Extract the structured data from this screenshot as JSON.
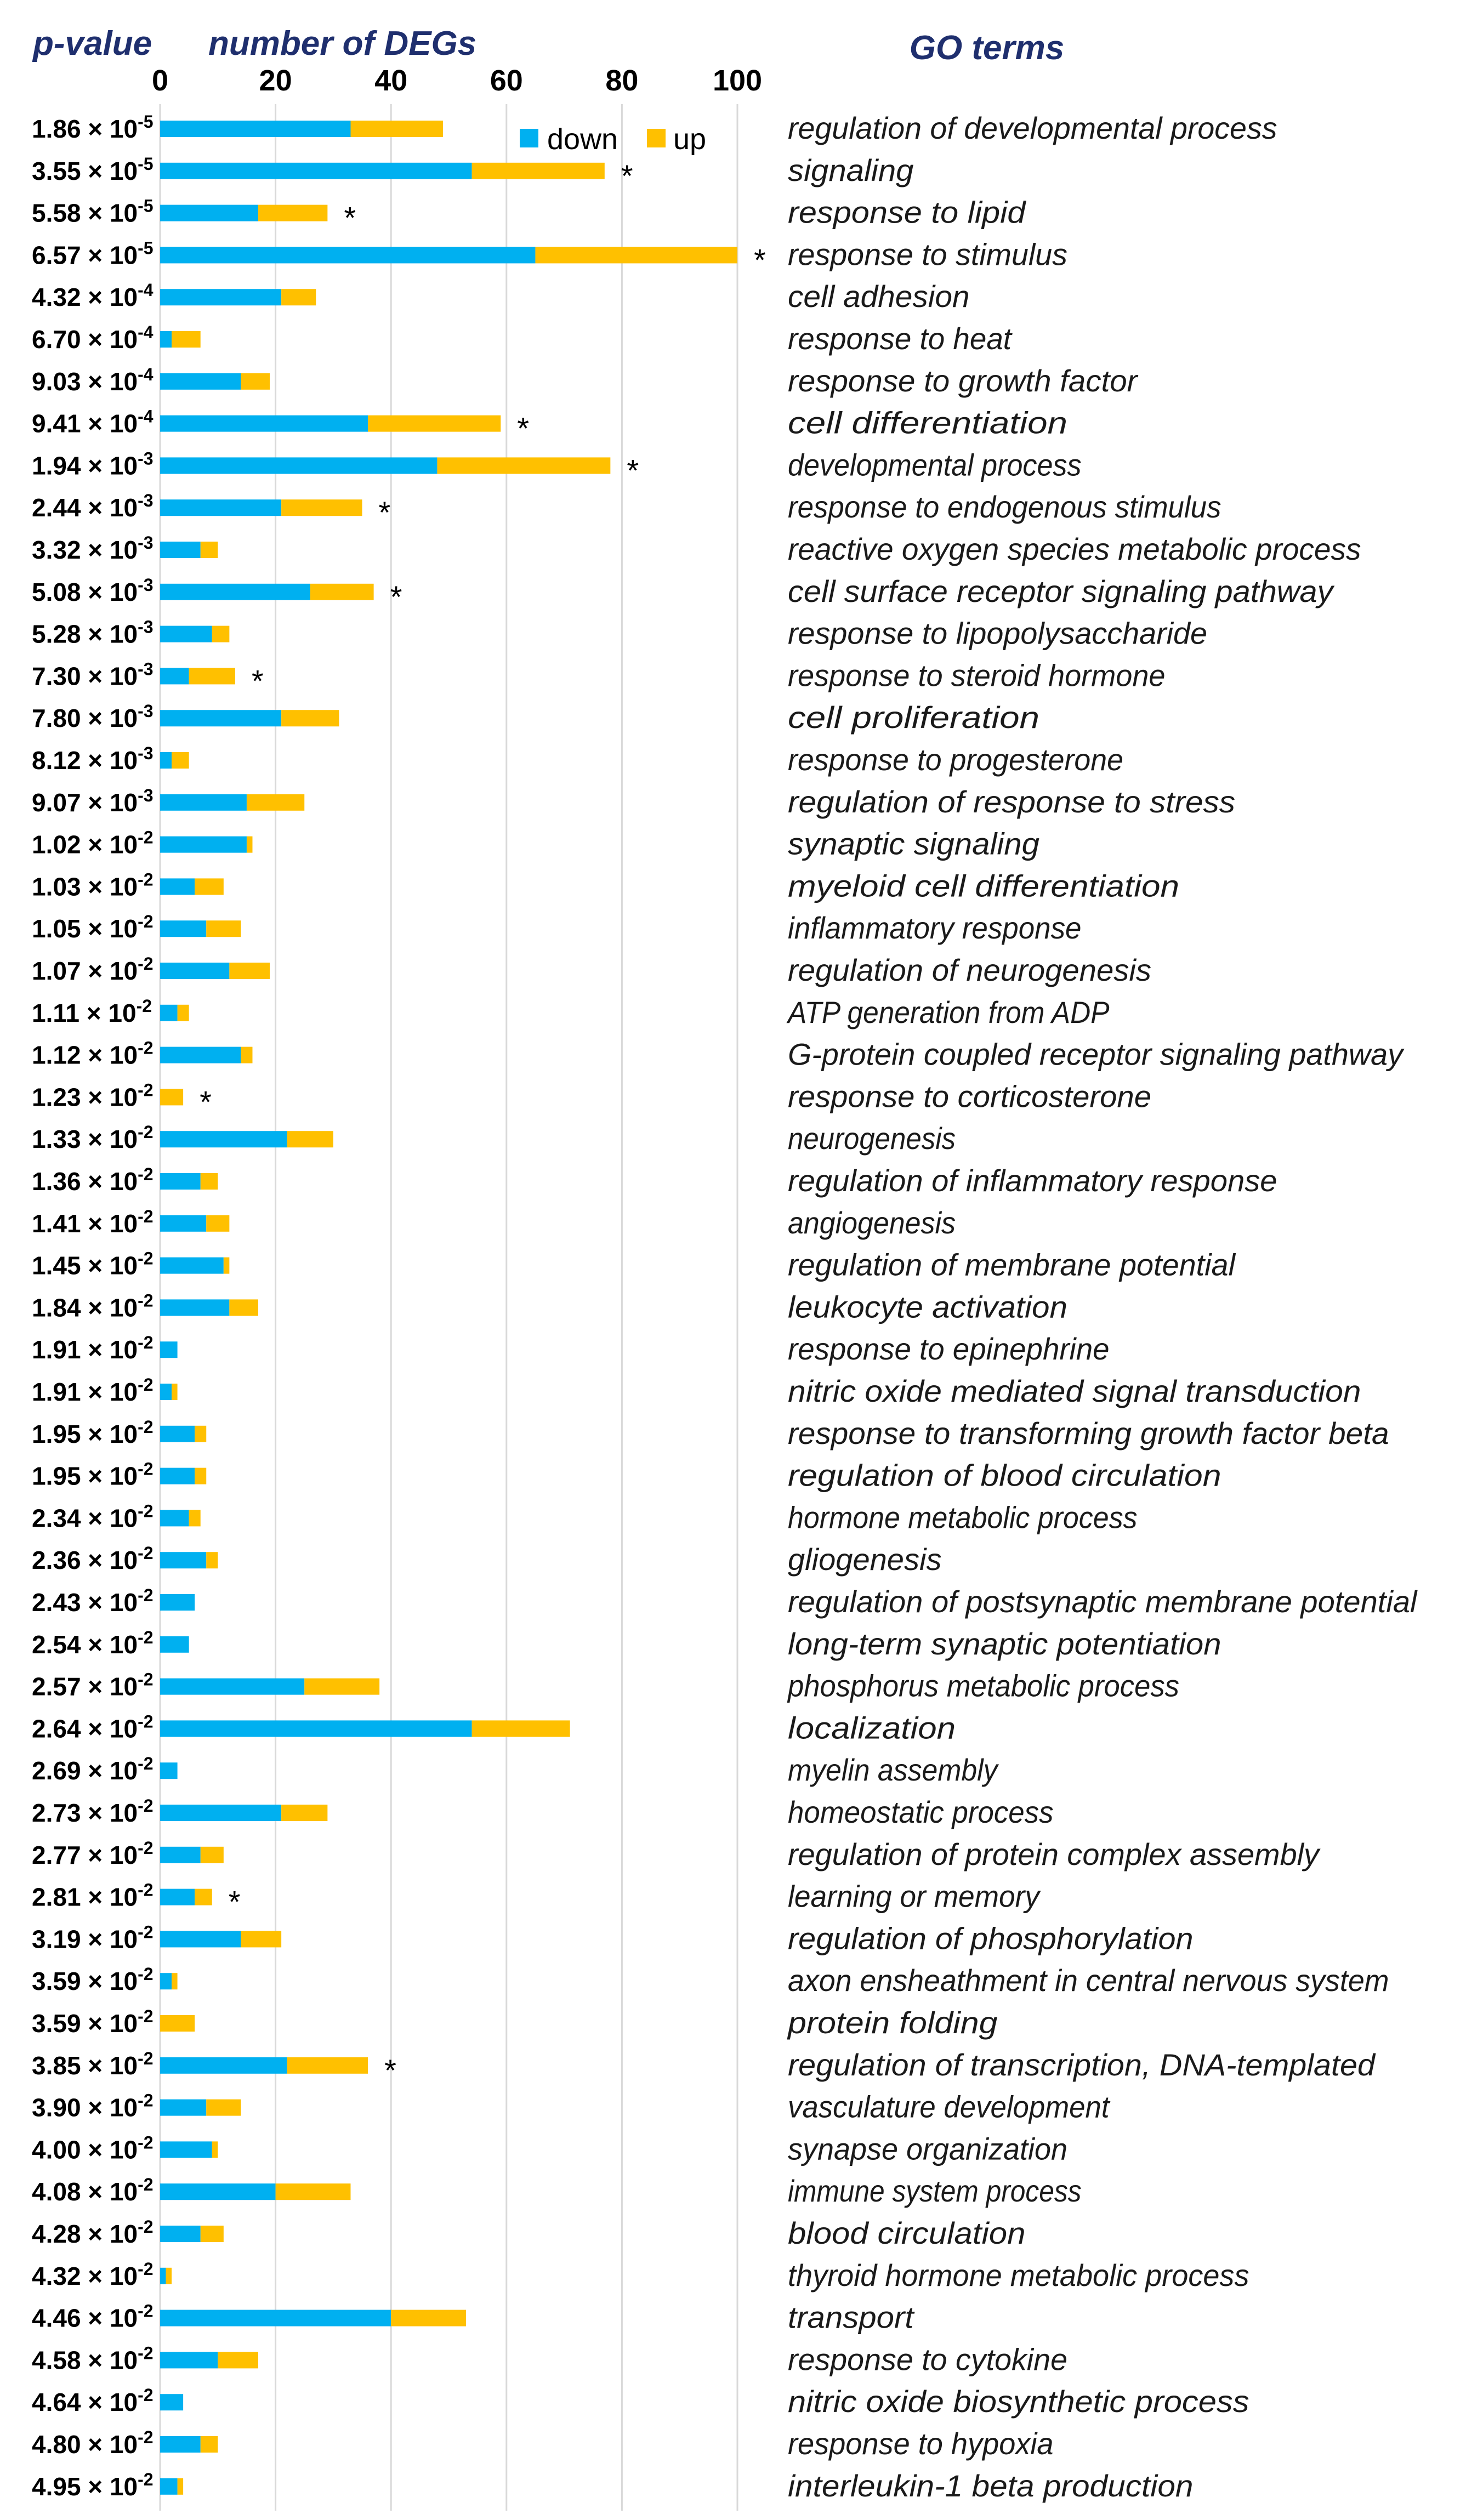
{
  "chart_data": {
    "type": "bar",
    "stacked": true,
    "orientation": "horizontal",
    "headers": {
      "pvalue": "p-value",
      "count": "number of DEGs",
      "terms": "GO terms"
    },
    "xlim": [
      0,
      100
    ],
    "xticks": [
      "0",
      "20",
      "40",
      "60",
      "80",
      "100"
    ],
    "grid": true,
    "legend_position": "top-right",
    "colors": {
      "down": "#00b0f0",
      "up": "#ffc000"
    },
    "series": [
      {
        "name": "down",
        "values": [
          33,
          54,
          17,
          65,
          21,
          2,
          14,
          36,
          48,
          21,
          7,
          26,
          9,
          5,
          21,
          2,
          15,
          15,
          6,
          8,
          12,
          3,
          14,
          0,
          22,
          7,
          8,
          11,
          12,
          3,
          2,
          6,
          6,
          5,
          8,
          6,
          5,
          25,
          54,
          3,
          21,
          7,
          6,
          14,
          2,
          0,
          22,
          8,
          9,
          20,
          7,
          1,
          40,
          10,
          4,
          7,
          3
        ]
      },
      {
        "name": "up",
        "values": [
          16,
          23,
          12,
          35,
          6,
          5,
          5,
          23,
          30,
          14,
          3,
          11,
          3,
          8,
          10,
          3,
          10,
          1,
          5,
          6,
          7,
          2,
          2,
          4,
          8,
          3,
          4,
          1,
          5,
          0,
          1,
          2,
          2,
          2,
          2,
          0,
          0,
          13,
          17,
          0,
          8,
          4,
          3,
          7,
          1,
          6,
          14,
          6,
          1,
          13,
          4,
          1,
          13,
          7,
          0,
          3,
          1
        ]
      }
    ],
    "categories": [
      {
        "p": "1.86 × 10",
        "e": "-5",
        "term": "regulation of developmental process",
        "star": ""
      },
      {
        "p": "3.55 × 10",
        "e": "-5",
        "term": "signaling",
        "star": "*"
      },
      {
        "p": "5.58 × 10",
        "e": "-5",
        "term": "response to lipid",
        "star": "*"
      },
      {
        "p": "6.57 × 10",
        "e": "-5",
        "term": "response to stimulus",
        "star": "*"
      },
      {
        "p": "4.32 × 10",
        "e": "-4",
        "term": "cell adhesion",
        "star": ""
      },
      {
        "p": "6.70 × 10",
        "e": "-4",
        "term": "response to heat",
        "star": ""
      },
      {
        "p": "9.03 × 10",
        "e": "-4",
        "term": "response to growth factor",
        "star": ""
      },
      {
        "p": "9.41 × 10",
        "e": "-4",
        "term": "cell differentiation",
        "star": "*"
      },
      {
        "p": "1.94 × 10",
        "e": "-3",
        "term": "developmental process",
        "star": "*"
      },
      {
        "p": "2.44 × 10",
        "e": "-3",
        "term": "response to endogenous stimulus",
        "star": "*"
      },
      {
        "p": "3.32 × 10",
        "e": "-3",
        "term": "reactive oxygen species metabolic process",
        "star": ""
      },
      {
        "p": "5.08 × 10",
        "e": "-3",
        "term": "cell surface receptor signaling pathway",
        "star": "*"
      },
      {
        "p": "5.28 × 10",
        "e": "-3",
        "term": "response to lipopolysaccharide",
        "star": ""
      },
      {
        "p": "7.30 × 10",
        "e": "-3",
        "term": "response to steroid hormone",
        "star": "*"
      },
      {
        "p": "7.80 × 10",
        "e": "-3",
        "term": "cell proliferation",
        "star": ""
      },
      {
        "p": "8.12 × 10",
        "e": "-3",
        "term": "response to progesterone",
        "star": ""
      },
      {
        "p": "9.07 × 10",
        "e": "-3",
        "term": "regulation of response to stress",
        "star": ""
      },
      {
        "p": "1.02 × 10",
        "e": "-2",
        "term": "synaptic signaling",
        "star": ""
      },
      {
        "p": "1.03 × 10",
        "e": "-2",
        "term": "myeloid cell differentiation",
        "star": ""
      },
      {
        "p": "1.05 × 10",
        "e": "-2",
        "term": "inflammatory response",
        "star": ""
      },
      {
        "p": "1.07 × 10",
        "e": "-2",
        "term": "regulation of neurogenesis",
        "star": ""
      },
      {
        "p": "1.11 × 10",
        "e": "-2",
        "term": "ATP generation from ADP",
        "star": ""
      },
      {
        "p": "1.12 × 10",
        "e": "-2",
        "term": "G-protein coupled receptor signaling pathway",
        "star": ""
      },
      {
        "p": "1.23 × 10",
        "e": "-2",
        "term": "response to corticosterone",
        "star": "*"
      },
      {
        "p": "1.33 × 10",
        "e": "-2",
        "term": "neurogenesis",
        "star": ""
      },
      {
        "p": "1.36 × 10",
        "e": "-2",
        "term": "regulation of inflammatory response",
        "star": ""
      },
      {
        "p": "1.41 × 10",
        "e": "-2",
        "term": "angiogenesis",
        "star": ""
      },
      {
        "p": "1.45 × 10",
        "e": "-2",
        "term": "regulation of membrane potential",
        "star": ""
      },
      {
        "p": "1.84 × 10",
        "e": "-2",
        "term": "leukocyte activation",
        "star": ""
      },
      {
        "p": "1.91 × 10",
        "e": "-2",
        "term": "response to epinephrine",
        "star": ""
      },
      {
        "p": "1.91 × 10",
        "e": "-2",
        "term": "nitric oxide mediated signal transduction",
        "star": ""
      },
      {
        "p": "1.95 × 10",
        "e": "-2",
        "term": "response to transforming growth factor beta",
        "star": ""
      },
      {
        "p": "1.95 × 10",
        "e": "-2",
        "term": "regulation of blood circulation",
        "star": ""
      },
      {
        "p": "2.34 × 10",
        "e": "-2",
        "term": "hormone metabolic process",
        "star": ""
      },
      {
        "p": "2.36 × 10",
        "e": "-2",
        "term": "gliogenesis",
        "star": ""
      },
      {
        "p": "2.43 × 10",
        "e": "-2",
        "term": "regulation of postsynaptic membrane potential",
        "star": ""
      },
      {
        "p": "2.54 × 10",
        "e": "-2",
        "term": "long-term synaptic potentiation",
        "star": ""
      },
      {
        "p": "2.57 × 10",
        "e": "-2",
        "term": "phosphorus metabolic process",
        "star": ""
      },
      {
        "p": "2.64 × 10",
        "e": "-2",
        "term": "localization",
        "star": ""
      },
      {
        "p": "2.69 × 10",
        "e": "-2",
        "term": "myelin assembly",
        "star": ""
      },
      {
        "p": "2.73 × 10",
        "e": "-2",
        "term": "homeostatic process",
        "star": ""
      },
      {
        "p": "2.77 × 10",
        "e": "-2",
        "term": "regulation of protein complex assembly",
        "star": ""
      },
      {
        "p": "2.81 × 10",
        "e": "-2",
        "term": "learning or memory",
        "star": "*"
      },
      {
        "p": "3.19 × 10",
        "e": "-2",
        "term": "regulation of phosphorylation",
        "star": ""
      },
      {
        "p": "3.59 × 10",
        "e": "-2",
        "term": "axon ensheathment in central nervous system",
        "star": ""
      },
      {
        "p": "3.59 × 10",
        "e": "-2",
        "term": "protein folding",
        "star": ""
      },
      {
        "p": "3.85 × 10",
        "e": "-2",
        "term": "regulation of transcription, DNA-templated",
        "star": "*"
      },
      {
        "p": "3.90 × 10",
        "e": "-2",
        "term": "vasculature development",
        "star": ""
      },
      {
        "p": "4.00 × 10",
        "e": "-2",
        "term": "synapse organization",
        "star": ""
      },
      {
        "p": "4.08 × 10",
        "e": "-2",
        "term": "immune system process",
        "star": ""
      },
      {
        "p": "4.28 × 10",
        "e": "-2",
        "term": "blood circulation",
        "star": ""
      },
      {
        "p": "4.32 × 10",
        "e": "-2",
        "term": "thyroid hormone metabolic process",
        "star": ""
      },
      {
        "p": "4.46 × 10",
        "e": "-2",
        "term": "transport",
        "star": ""
      },
      {
        "p": "4.58 × 10",
        "e": "-2",
        "term": "response to cytokine",
        "star": ""
      },
      {
        "p": "4.64 × 10",
        "e": "-2",
        "term": "nitric oxide biosynthetic process",
        "star": ""
      },
      {
        "p": "4.80 × 10",
        "e": "-2",
        "term": "response to hypoxia",
        "star": ""
      },
      {
        "p": "4.95 × 10",
        "e": "-2",
        "term": "interleukin-1 beta production",
        "star": ""
      }
    ]
  }
}
